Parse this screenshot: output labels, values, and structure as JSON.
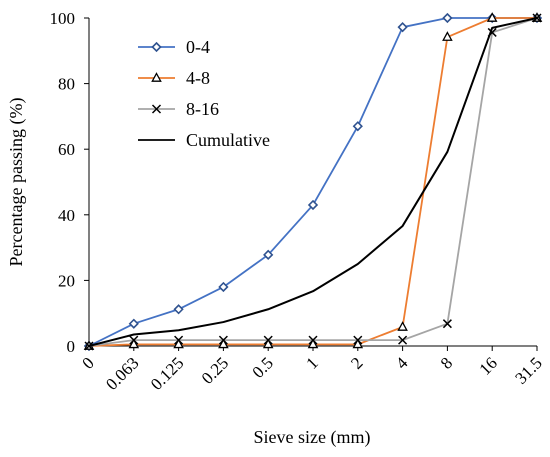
{
  "chart_data": {
    "type": "line",
    "categories": [
      "0",
      "0.063",
      "0.125",
      "0.25",
      "0.5",
      "1",
      "2",
      "4",
      "8",
      "16",
      "31.5"
    ],
    "xlabel": "Sieve size (mm)",
    "ylabel": "Percentage passing (%)",
    "ylim": [
      0,
      100
    ],
    "yticks": [
      0,
      20,
      40,
      60,
      80,
      100
    ],
    "grid": false,
    "legend_position": "top-left",
    "series": [
      {
        "name": "0-4",
        "color": "#4472C4",
        "marker": "diamond",
        "values": [
          0,
          6.8,
          11.2,
          18,
          27.8,
          43,
          67,
          97.2,
          100,
          100,
          100
        ]
      },
      {
        "name": "4-8",
        "color": "#ED7D31",
        "marker": "triangle",
        "values": [
          0,
          0.5,
          0.5,
          0.5,
          0.5,
          0.5,
          0.5,
          5.8,
          94.2,
          100,
          100
        ]
      },
      {
        "name": "8-16",
        "color": "#A5A5A5",
        "marker": "cross",
        "values": [
          0,
          1.8,
          1.8,
          1.8,
          1.8,
          1.8,
          1.8,
          1.8,
          6.8,
          95.6,
          100
        ]
      },
      {
        "name": "Cumulative",
        "color": "#000000",
        "marker": "none",
        "values": [
          0,
          3.5,
          4.8,
          7.3,
          11.2,
          16.7,
          25,
          36.6,
          59.2,
          97,
          100
        ]
      }
    ]
  }
}
